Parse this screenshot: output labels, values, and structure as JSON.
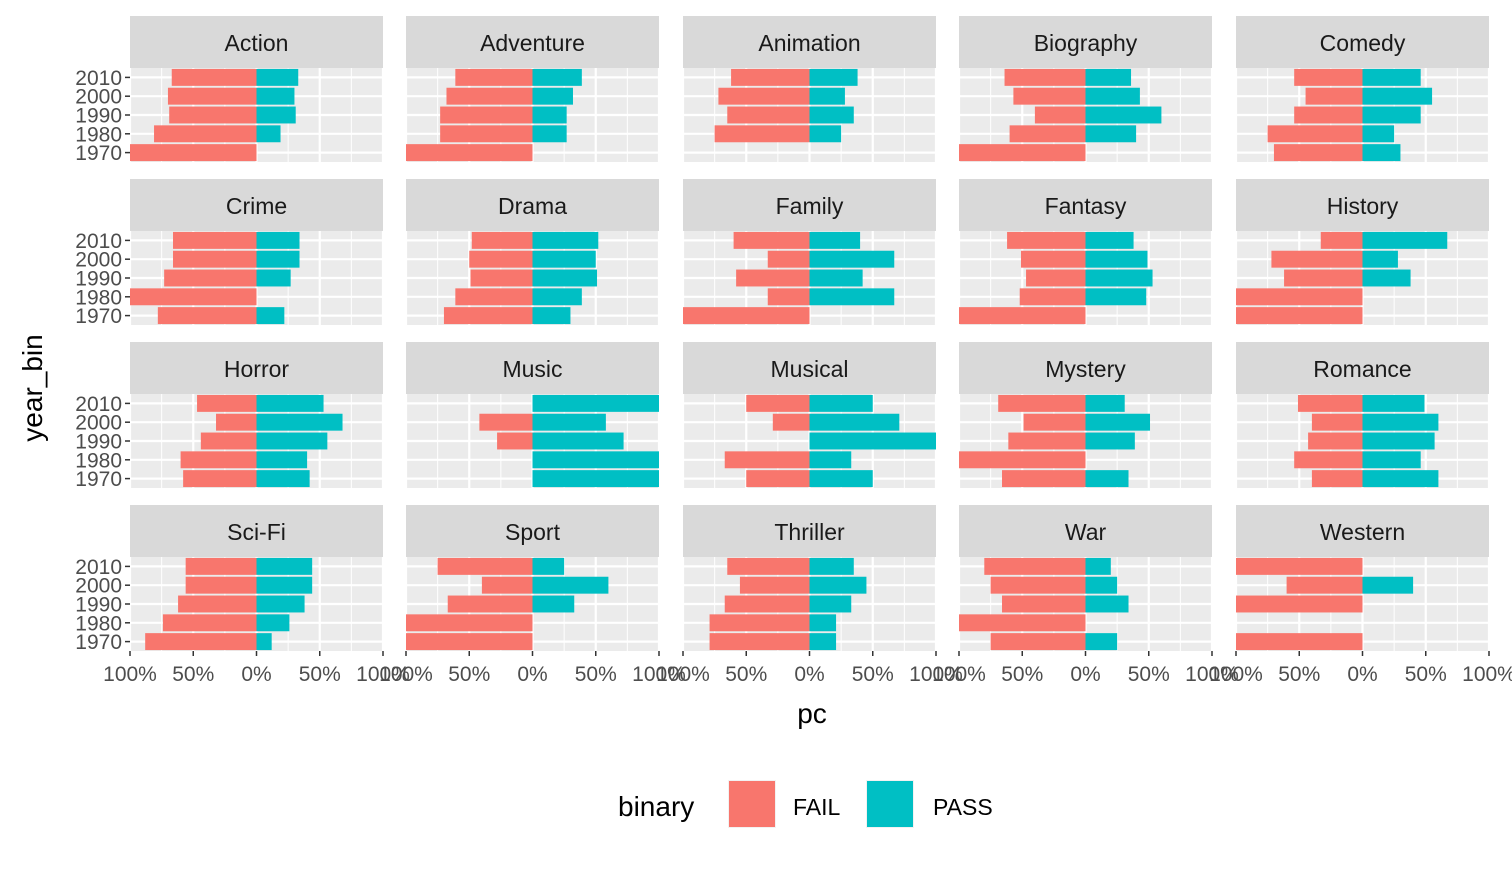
{
  "colors": {
    "FAIL": "#F8766D",
    "PASS": "#00BFC4",
    "panel_bg": "#EBEBEB",
    "strip_bg": "#D9D9D9"
  },
  "chart_data": {
    "type": "bar",
    "orientation": "horizontal",
    "faceted": true,
    "xlabel": "pc",
    "ylabel": "year_bin",
    "xlim": [
      -1,
      1
    ],
    "x_ticks": [
      -1,
      -0.5,
      0,
      0.5,
      1
    ],
    "x_tick_labels": [
      "100%",
      "50%",
      "0%",
      "50%",
      "100%"
    ],
    "categories": [
      "2010",
      "2000",
      "1990",
      "1980",
      "1970"
    ],
    "legend": {
      "title": "binary",
      "position": "bottom",
      "entries": [
        "FAIL",
        "PASS"
      ]
    },
    "panels": [
      {
        "title": "Action",
        "fail": [
          0.67,
          0.7,
          0.69,
          0.81,
          1.0
        ],
        "pass": [
          0.33,
          0.3,
          0.31,
          0.19,
          0.0
        ]
      },
      {
        "title": "Adventure",
        "fail": [
          0.61,
          0.68,
          0.73,
          0.73,
          1.0
        ],
        "pass": [
          0.39,
          0.32,
          0.27,
          0.27,
          0.0
        ]
      },
      {
        "title": "Animation",
        "fail": [
          0.62,
          0.72,
          0.65,
          0.75,
          0.0
        ],
        "pass": [
          0.38,
          0.28,
          0.35,
          0.25,
          0.0
        ]
      },
      {
        "title": "Biography",
        "fail": [
          0.64,
          0.57,
          0.4,
          0.6,
          1.0
        ],
        "pass": [
          0.36,
          0.43,
          0.6,
          0.4,
          0.0
        ]
      },
      {
        "title": "Comedy",
        "fail": [
          0.54,
          0.45,
          0.54,
          0.75,
          0.7
        ],
        "pass": [
          0.46,
          0.55,
          0.46,
          0.25,
          0.3
        ]
      },
      {
        "title": "Crime",
        "fail": [
          0.66,
          0.66,
          0.73,
          1.0,
          0.78
        ],
        "pass": [
          0.34,
          0.34,
          0.27,
          0.0,
          0.22
        ]
      },
      {
        "title": "Drama",
        "fail": [
          0.48,
          0.5,
          0.49,
          0.61,
          0.7
        ],
        "pass": [
          0.52,
          0.5,
          0.51,
          0.39,
          0.3
        ]
      },
      {
        "title": "Family",
        "fail": [
          0.6,
          0.33,
          0.58,
          0.33,
          1.0
        ],
        "pass": [
          0.4,
          0.67,
          0.42,
          0.67,
          0.0
        ]
      },
      {
        "title": "Fantasy",
        "fail": [
          0.62,
          0.51,
          0.47,
          0.52,
          1.0
        ],
        "pass": [
          0.38,
          0.49,
          0.53,
          0.48,
          0.0
        ]
      },
      {
        "title": "History",
        "fail": [
          0.33,
          0.72,
          0.62,
          1.0,
          1.0
        ],
        "pass": [
          0.67,
          0.28,
          0.38,
          0.0,
          0.0
        ]
      },
      {
        "title": "Horror",
        "fail": [
          0.47,
          0.32,
          0.44,
          0.6,
          0.58
        ],
        "pass": [
          0.53,
          0.68,
          0.56,
          0.4,
          0.42
        ]
      },
      {
        "title": "Music",
        "fail": [
          0.0,
          0.42,
          0.28,
          0.0,
          0.0
        ],
        "pass": [
          1.0,
          0.58,
          0.72,
          1.0,
          1.0
        ]
      },
      {
        "title": "Musical",
        "fail": [
          0.5,
          0.29,
          0.0,
          0.67,
          0.5
        ],
        "pass": [
          0.5,
          0.71,
          1.0,
          0.33,
          0.5
        ]
      },
      {
        "title": "Mystery",
        "fail": [
          0.69,
          0.49,
          0.61,
          1.0,
          0.66
        ],
        "pass": [
          0.31,
          0.51,
          0.39,
          0.0,
          0.34
        ]
      },
      {
        "title": "Romance",
        "fail": [
          0.51,
          0.4,
          0.43,
          0.54,
          0.4
        ],
        "pass": [
          0.49,
          0.6,
          0.57,
          0.46,
          0.6
        ]
      },
      {
        "title": "Sci-Fi",
        "fail": [
          0.56,
          0.56,
          0.62,
          0.74,
          0.88
        ],
        "pass": [
          0.44,
          0.44,
          0.38,
          0.26,
          0.12
        ]
      },
      {
        "title": "Sport",
        "fail": [
          0.75,
          0.4,
          0.67,
          1.0,
          1.0
        ],
        "pass": [
          0.25,
          0.6,
          0.33,
          0.0,
          0.0
        ]
      },
      {
        "title": "Thriller",
        "fail": [
          0.65,
          0.55,
          0.67,
          0.79,
          0.79
        ],
        "pass": [
          0.35,
          0.45,
          0.33,
          0.21,
          0.21
        ]
      },
      {
        "title": "War",
        "fail": [
          0.8,
          0.75,
          0.66,
          1.0,
          0.75
        ],
        "pass": [
          0.2,
          0.25,
          0.34,
          0.0,
          0.25
        ]
      },
      {
        "title": "Western",
        "fail": [
          1.0,
          0.6,
          1.0,
          0.0,
          1.0
        ],
        "pass": [
          0.0,
          0.4,
          0.0,
          0.0,
          0.0
        ]
      }
    ]
  }
}
